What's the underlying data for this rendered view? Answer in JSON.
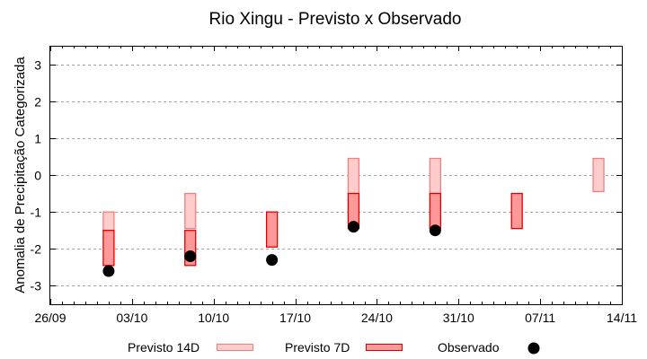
{
  "chart_data": {
    "type": "bar",
    "title": "Rio Xingu - Previsto x Observado",
    "xlabel": "",
    "ylabel": "Anomalia de Precipitação Categorizada",
    "ylim": [
      -3.5,
      3.5
    ],
    "yticks": [
      3,
      2,
      1,
      0,
      -1,
      -2,
      -3
    ],
    "xlim": [
      "26/09",
      "14/11"
    ],
    "xticks": [
      "26/09",
      "03/10",
      "10/10",
      "17/10",
      "24/10",
      "31/10",
      "07/11",
      "14/11"
    ],
    "grid": "horizontal dashed",
    "legend_position": "bottom",
    "series": [
      {
        "name": "Previsto 14D",
        "style": "floating-bar",
        "fill": "#ffcccc",
        "stroke": "#f08080",
        "points": [
          {
            "date": "01/10",
            "top": -1.0,
            "bottom": -1.5
          },
          {
            "date": "08/10",
            "top": -0.5,
            "bottom": -1.45
          },
          {
            "date": "22/10",
            "top": 0.45,
            "bottom": -0.5
          },
          {
            "date": "29/10",
            "top": 0.45,
            "bottom": -0.5
          },
          {
            "date": "12/11",
            "top": 0.45,
            "bottom": -0.45
          }
        ]
      },
      {
        "name": "Previsto 7D",
        "style": "floating-bar",
        "fill": "#ff9999",
        "stroke": "#e00000",
        "points": [
          {
            "date": "01/10",
            "top": -1.5,
            "bottom": -2.45
          },
          {
            "date": "08/10",
            "top": -1.5,
            "bottom": -2.45
          },
          {
            "date": "15/10",
            "top": -1.0,
            "bottom": -1.95
          },
          {
            "date": "22/10",
            "top": -0.5,
            "bottom": -1.45
          },
          {
            "date": "29/10",
            "top": -0.5,
            "bottom": -1.45
          },
          {
            "date": "05/11",
            "top": -0.5,
            "bottom": -1.45
          }
        ]
      },
      {
        "name": "Observado",
        "style": "point",
        "color": "#000000",
        "points": [
          {
            "date": "01/10",
            "value": -2.6
          },
          {
            "date": "08/10",
            "value": -2.2
          },
          {
            "date": "15/10",
            "value": -2.3
          },
          {
            "date": "22/10",
            "value": -1.4
          },
          {
            "date": "29/10",
            "value": -1.5
          }
        ]
      }
    ]
  },
  "legend": {
    "items": [
      {
        "label": "Previsto 14D"
      },
      {
        "label": "Previsto 7D"
      },
      {
        "label": "Observado"
      }
    ]
  }
}
